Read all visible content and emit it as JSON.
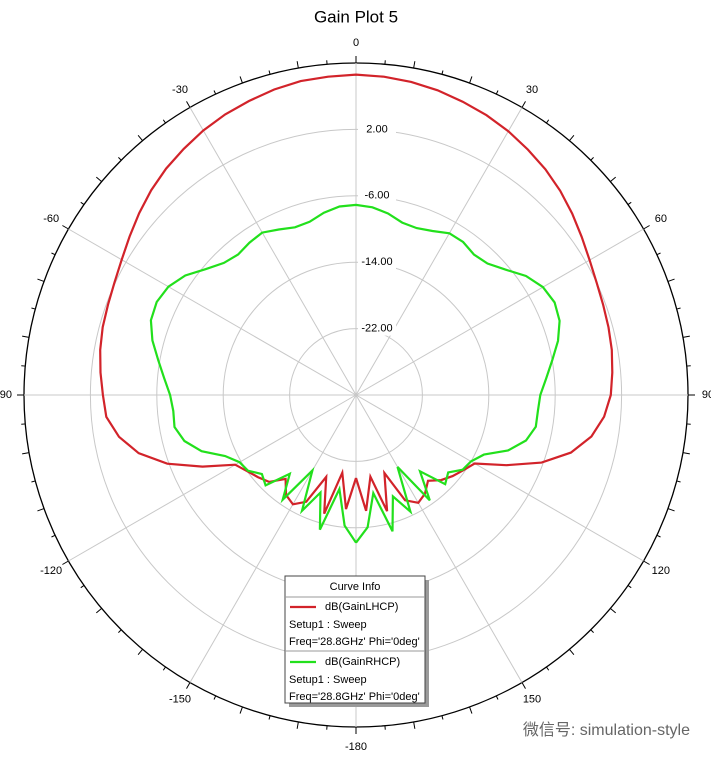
{
  "chart_data": {
    "type": "polar-line",
    "title": "Gain Plot 5",
    "theta": [
      -180,
      -175,
      -170,
      -165,
      -160,
      -155,
      -150,
      -145,
      -140,
      -135,
      -130,
      -125,
      -120,
      -115,
      -110,
      -105,
      -100,
      -95,
      -90,
      -85,
      -80,
      -75,
      -70,
      -65,
      -60,
      -55,
      -50,
      -45,
      -40,
      -35,
      -30,
      -25,
      -20,
      -15,
      -10,
      -5,
      0,
      5,
      10,
      15,
      20,
      25,
      30,
      35,
      40,
      45,
      50,
      55,
      60,
      65,
      70,
      75,
      80,
      85,
      90,
      95,
      100,
      105,
      110,
      115,
      120,
      125,
      130,
      135,
      140,
      145,
      150,
      155,
      160,
      165,
      170,
      175,
      180
    ],
    "series": [
      {
        "name": "dB(GainLHCP)",
        "color": "#d2232a",
        "legend_lines": [
          "Setup1 : Sweep",
          "Freq='28.8GHz' Phi='0deg'"
        ],
        "values": [
          -20,
          -16.2,
          -20.5,
          -15.2,
          -19.5,
          -15.8,
          -14.8,
          -15.3,
          -16.8,
          -15.2,
          -14.6,
          -14.0,
          -13.2,
          -9.6,
          -5.8,
          -2.9,
          -1.0,
          0.2,
          0.5,
          0.9,
          1.3,
          1.6,
          1.8,
          2.1,
          2.6,
          3.3,
          4.1,
          4.9,
          5.6,
          6.2,
          6.8,
          7.3,
          7.7,
          8.1,
          8.4,
          8.5,
          8.6,
          8.5,
          8.3,
          8.0,
          7.6,
          7.2,
          6.7,
          6.1,
          5.5,
          4.8,
          4.0,
          3.2,
          2.5,
          2.0,
          1.7,
          1.5,
          1.3,
          1.0,
          0.7,
          0.0,
          -1.2,
          -3.2,
          -6.2,
          -10.0,
          -13.5,
          -14.2,
          -14.8,
          -15.5,
          -16.5,
          -15.5,
          -15.0,
          -16.0,
          -20.0,
          -15.5,
          -20.0,
          -16.0,
          -20.0
        ]
      },
      {
        "name": "dB(GainRHCP)",
        "color": "#22e01c",
        "legend_lines": [
          "Setup1 : Sweep",
          "Freq='28.8GHz' Phi='0deg'"
        ],
        "values": [
          -12.2,
          -14.2,
          -18.5,
          -13.2,
          -17.5,
          -14.6,
          -19.5,
          -14.6,
          -17.6,
          -14.6,
          -15.2,
          -14.1,
          -13.8,
          -12.6,
          -10.2,
          -8.6,
          -7.8,
          -7.9,
          -7.6,
          -6.8,
          -5.8,
          -4.6,
          -3.7,
          -3.5,
          -3.9,
          -4.9,
          -6.4,
          -7.5,
          -7.9,
          -7.6,
          -7.4,
          -8.0,
          -8.5,
          -8.4,
          -7.7,
          -7.2,
          -7.1,
          -7.3,
          -7.8,
          -8.5,
          -8.6,
          -8.2,
          -7.5,
          -7.5,
          -7.9,
          -7.6,
          -6.5,
          -5.0,
          -4.0,
          -3.6,
          -3.9,
          -4.8,
          -6.0,
          -7.0,
          -7.8,
          -8.0,
          -8.0,
          -8.8,
          -10.5,
          -13.0,
          -14.0,
          -14.3,
          -15.5,
          -14.8,
          -18,
          -14.5,
          -20,
          -14.5,
          -17,
          -13,
          -18,
          -14,
          -12.2
        ]
      }
    ],
    "rlim": [
      -30,
      10
    ],
    "rticks": [
      {
        "value": 2,
        "label": "2.00"
      },
      {
        "value": -6,
        "label": "-6.00"
      },
      {
        "value": -14,
        "label": "-14.00"
      },
      {
        "value": -22,
        "label": "-22.00"
      }
    ],
    "thetaticks": [
      0,
      30,
      60,
      90,
      120,
      150,
      -180,
      -150,
      -120,
      -90,
      -60,
      -30
    ],
    "legend_title": "Curve Info",
    "watermark": "微信号: simulation-style"
  }
}
